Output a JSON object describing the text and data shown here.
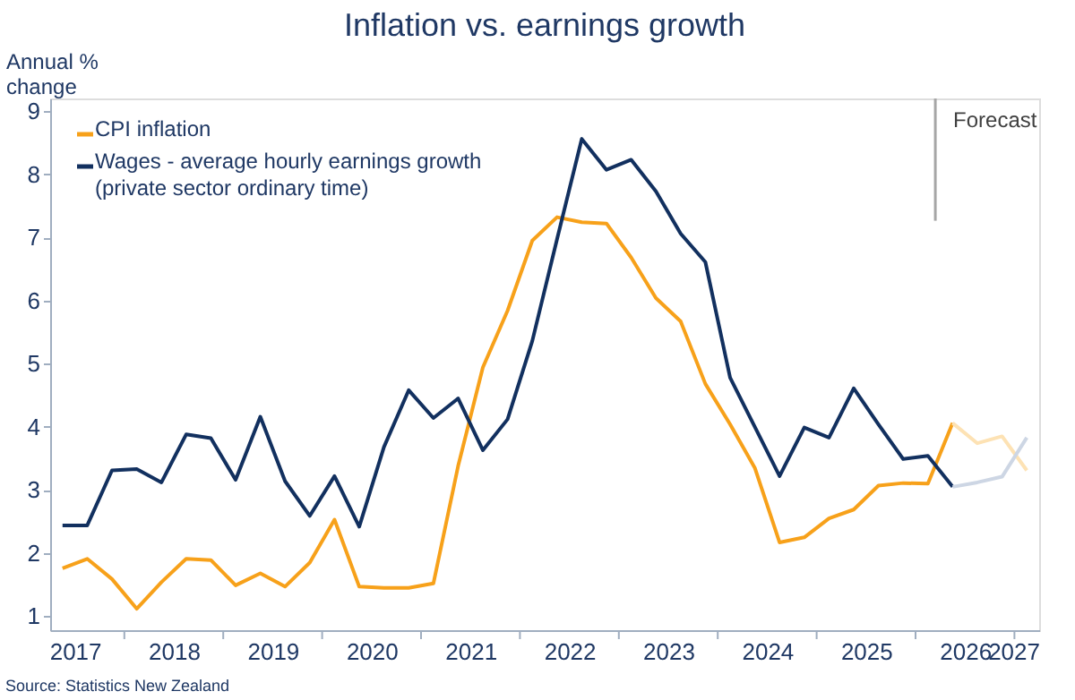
{
  "chart_data": {
    "type": "line",
    "title": "Inflation vs. earnings growth",
    "ylabel": "Annual % change",
    "x": [
      2017.375,
      2017.625,
      2017.875,
      2018.125,
      2018.375,
      2018.625,
      2018.875,
      2019.125,
      2019.375,
      2019.625,
      2019.875,
      2020.125,
      2020.375,
      2020.625,
      2020.875,
      2021.125,
      2021.375,
      2021.625,
      2021.875,
      2022.125,
      2022.375,
      2022.625,
      2022.875,
      2023.125,
      2023.375,
      2023.625,
      2023.875,
      2024.125,
      2024.375,
      2024.625,
      2024.875,
      2025.125,
      2025.375,
      2025.625,
      2025.875,
      2026.125,
      2026.375,
      2026.625,
      2026.875,
      2027.125
    ],
    "series": [
      {
        "name": "CPI inflation",
        "color": "#f7a11a",
        "values": [
          1.76,
          1.91,
          1.59,
          1.12,
          1.54,
          1.91,
          1.89,
          1.49,
          1.68,
          1.47,
          1.85,
          2.53,
          1.47,
          1.45,
          1.45,
          1.52,
          3.38,
          4.94,
          5.84,
          6.95,
          7.32,
          7.24,
          7.22,
          6.68,
          6.04,
          5.67,
          4.68,
          4.04,
          3.35,
          2.17,
          2.25,
          2.55,
          2.69,
          3.07,
          3.11,
          3.1,
          4.06,
          null,
          null,
          null
        ]
      },
      {
        "name": "Wages - average hourly earnings growth\n(private sector ordinary time)",
        "color": "#12305f",
        "values": [
          2.44,
          2.44,
          3.31,
          3.33,
          3.12,
          3.88,
          3.82,
          3.16,
          4.16,
          3.14,
          2.59,
          3.22,
          2.42,
          3.68,
          4.58,
          4.14,
          4.45,
          3.63,
          4.12,
          5.36,
          6.97,
          8.56,
          8.07,
          8.23,
          7.73,
          7.06,
          6.61,
          4.78,
          4.0,
          3.22,
          3.99,
          3.83,
          4.61,
          4.04,
          3.49,
          3.54,
          3.05,
          null,
          null,
          null
        ]
      },
      {
        "color": "#fde2b4",
        "values": [
          null,
          null,
          null,
          null,
          null,
          null,
          null,
          null,
          null,
          null,
          null,
          null,
          null,
          null,
          null,
          null,
          null,
          null,
          null,
          null,
          null,
          null,
          null,
          null,
          null,
          null,
          null,
          null,
          null,
          null,
          null,
          null,
          null,
          null,
          null,
          null,
          4.06,
          3.74,
          3.85,
          3.31
        ]
      },
      {
        "color": "#cdd6e4",
        "values": [
          null,
          null,
          null,
          null,
          null,
          null,
          null,
          null,
          null,
          null,
          null,
          null,
          null,
          null,
          null,
          null,
          null,
          null,
          null,
          null,
          null,
          null,
          null,
          null,
          null,
          null,
          null,
          null,
          null,
          null,
          null,
          null,
          null,
          null,
          null,
          null,
          3.05,
          3.12,
          3.21,
          3.83
        ]
      }
    ],
    "xlim": [
      2017.25,
      2027.25
    ],
    "xticks": [
      {
        "value": 2017.5,
        "label": "2017"
      },
      {
        "value": 2018,
        "label": null
      },
      {
        "value": 2018.5,
        "label": "2018"
      },
      {
        "value": 2019,
        "label": null
      },
      {
        "value": 2019.5,
        "label": "2019"
      },
      {
        "value": 2020,
        "label": null
      },
      {
        "value": 2020.5,
        "label": "2020"
      },
      {
        "value": 2021,
        "label": null
      },
      {
        "value": 2021.5,
        "label": "2021"
      },
      {
        "value": 2022,
        "label": null
      },
      {
        "value": 2022.5,
        "label": "2022"
      },
      {
        "value": 2023,
        "label": null
      },
      {
        "value": 2023.5,
        "label": "2023"
      },
      {
        "value": 2024,
        "label": null
      },
      {
        "value": 2024.5,
        "label": "2024"
      },
      {
        "value": 2025,
        "label": null
      },
      {
        "value": 2025.5,
        "label": "2025"
      },
      {
        "value": 2026,
        "label": null
      },
      {
        "value": 2026.5,
        "label": "2026"
      },
      {
        "value": 2027,
        "label": null
      },
      {
        "value": 2027.25,
        "label": "2027"
      }
    ],
    "ylim": [
      0.78,
      9.2
    ],
    "yticks": [
      1,
      2,
      3,
      4,
      5,
      6,
      7,
      8,
      9
    ],
    "ref_lines": [
      {
        "axis": "x",
        "value": 2026.2,
        "label": "Forecast",
        "color": "#a6a6a6"
      }
    ],
    "legend": "top left",
    "grid": false,
    "annotations": [
      "Source: Statistics New Zealand"
    ]
  }
}
